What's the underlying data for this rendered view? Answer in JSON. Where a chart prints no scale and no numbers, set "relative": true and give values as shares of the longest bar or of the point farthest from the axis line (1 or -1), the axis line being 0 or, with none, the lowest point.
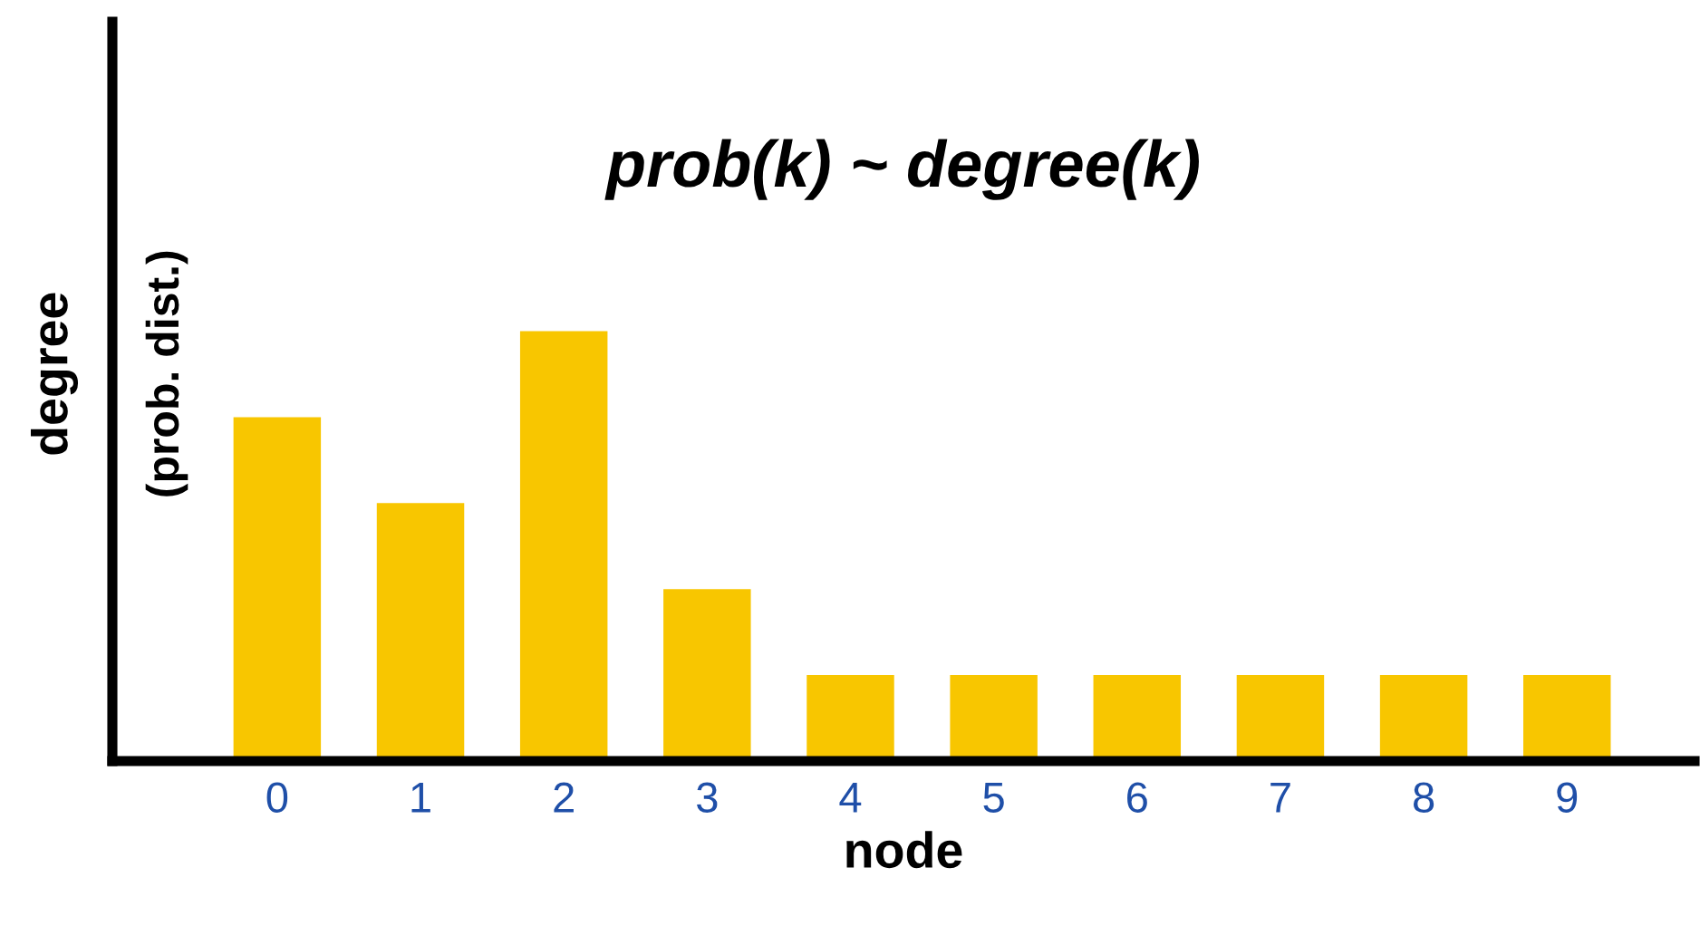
{
  "chart_data": {
    "type": "bar",
    "title": "prob(k) ~ degree(k)",
    "xlabel": "node",
    "ylabel": "degree",
    "annotations": [
      "(prob. dist.)"
    ],
    "categories": [
      "0",
      "1",
      "2",
      "3",
      "4",
      "5",
      "6",
      "7",
      "8",
      "9"
    ],
    "values": [
      0.8,
      0.6,
      1,
      0.4,
      0.2,
      0.2,
      0.2,
      0.2,
      0.2,
      0.2
    ],
    "color": "#f8c600",
    "relative": true,
    "grid": false,
    "legend": false
  }
}
